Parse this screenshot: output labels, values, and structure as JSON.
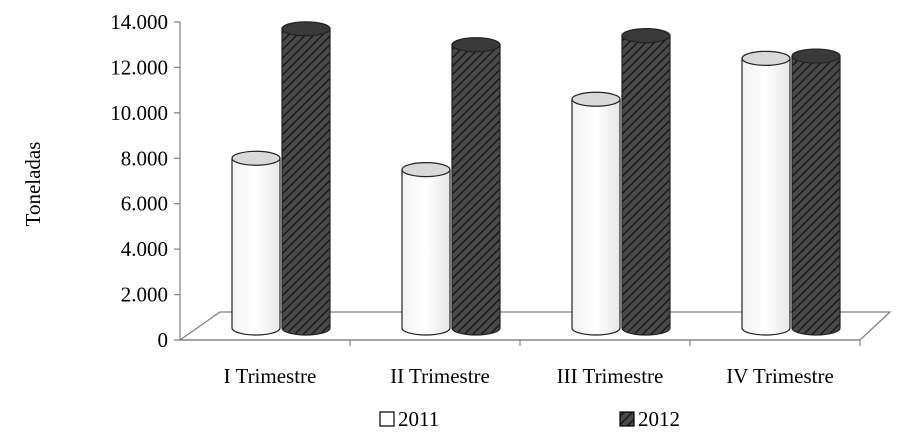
{
  "chart_data": {
    "type": "bar",
    "style": "3d-cylinder",
    "title": "",
    "xlabel": "",
    "ylabel": "Toneladas",
    "categories": [
      "I Trimestre",
      "II Trimestre",
      "III Trimestre",
      "IV Trimestre"
    ],
    "series": [
      {
        "name": "2011",
        "values": [
          8000,
          7500,
          10600,
          12400
        ],
        "color": "#ffffff"
      },
      {
        "name": "2012",
        "values": [
          13700,
          13000,
          13400,
          12500
        ],
        "color": "#3a3a3a"
      }
    ],
    "ylim": [
      0,
      14000
    ],
    "y_ticks": [
      "0",
      "2.000",
      "4.000",
      "6.000",
      "8.000",
      "10.000",
      "12.000",
      "14.000"
    ],
    "grid": false,
    "legend_position": "bottom"
  }
}
